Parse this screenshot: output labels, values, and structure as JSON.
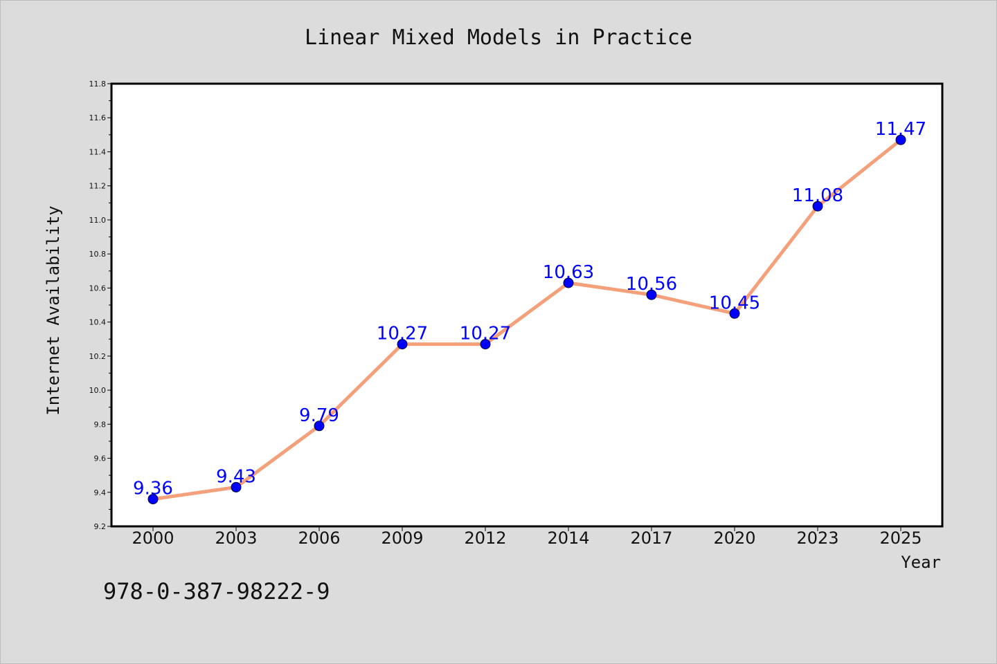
{
  "chart_data": {
    "type": "line",
    "title": "Linear Mixed Models in Practice",
    "xlabel": "Year",
    "ylabel": "Internet Availability",
    "categories": [
      "2000",
      "2003",
      "2006",
      "2009",
      "2012",
      "2014",
      "2017",
      "2020",
      "2023",
      "2025"
    ],
    "series": [
      {
        "values": [
          9.36,
          9.43,
          9.79,
          10.27,
          10.27,
          10.63,
          10.56,
          10.45,
          11.08,
          11.47
        ],
        "labels": [
          "9.36",
          "9.43",
          "9.79",
          "10.27",
          "10.27",
          "10.63",
          "10.56",
          "10.45",
          "11.08",
          "11.47"
        ],
        "line_color": "#f4a07a",
        "marker_color": "#0000ff"
      }
    ],
    "ylim": [
      9.2,
      11.8
    ],
    "yticks": [
      "9.2",
      "9.4",
      "9.6",
      "9.8",
      "10.0",
      "10.2",
      "10.4",
      "10.6",
      "10.8",
      "11.0",
      "11.2",
      "11.4",
      "11.6",
      "11.8"
    ],
    "grid": false,
    "legend": "none"
  },
  "footer": {
    "isbn": "978-0-387-98222-9"
  },
  "colors": {
    "background": "#dcdcdc",
    "plot_background": "#ffffff",
    "data_label": "#0000ff"
  }
}
